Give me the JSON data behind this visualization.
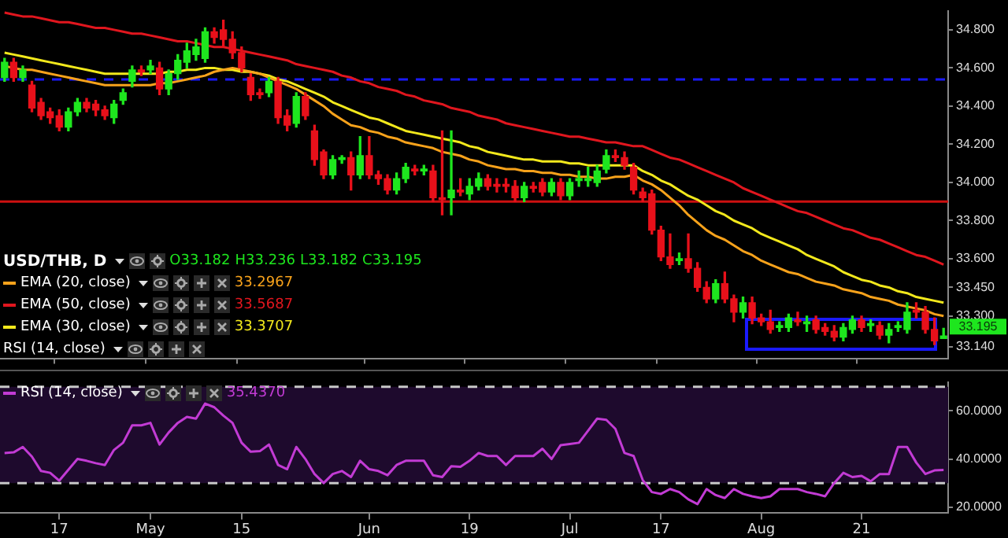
{
  "chart_data": [
    {
      "type": "candlestick",
      "title": "USD/THB, D",
      "annotations": [
        "O33.182",
        "H33.236",
        "L33.182",
        "C33.195",
        "33.2967",
        "33.5687",
        "33.3707",
        "RSI (14, close)",
        "33.195"
      ],
      "ohlc": [
        [
          34.55,
          34.65,
          34.53,
          34.63
        ],
        [
          34.63,
          34.65,
          34.53,
          34.55
        ],
        [
          34.55,
          34.61,
          34.53,
          34.59
        ],
        [
          34.51,
          34.53,
          34.37,
          34.39
        ],
        [
          34.42,
          34.44,
          34.33,
          34.35
        ],
        [
          34.37,
          34.39,
          34.31,
          34.34
        ],
        [
          34.35,
          34.38,
          34.27,
          34.29
        ],
        [
          34.29,
          34.39,
          34.27,
          34.37
        ],
        [
          34.37,
          34.44,
          34.35,
          34.42
        ],
        [
          34.42,
          34.44,
          34.37,
          34.39
        ],
        [
          34.41,
          34.43,
          34.35,
          34.38
        ],
        [
          34.38,
          34.4,
          34.33,
          34.35
        ],
        [
          34.34,
          34.43,
          34.31,
          34.41
        ],
        [
          34.43,
          34.49,
          34.41,
          34.47
        ],
        [
          34.53,
          34.61,
          34.5,
          34.59
        ],
        [
          34.59,
          34.61,
          34.56,
          34.58
        ],
        [
          34.59,
          34.64,
          34.57,
          34.61
        ],
        [
          34.6,
          34.63,
          34.46,
          34.49
        ],
        [
          34.49,
          34.59,
          34.46,
          34.57
        ],
        [
          34.57,
          34.67,
          34.54,
          34.64
        ],
        [
          34.63,
          34.73,
          34.6,
          34.69
        ],
        [
          34.67,
          34.75,
          34.64,
          34.71
        ],
        [
          34.65,
          34.81,
          34.63,
          34.79
        ],
        [
          34.79,
          34.81,
          34.73,
          34.76
        ],
        [
          34.8,
          34.85,
          34.71,
          34.75
        ],
        [
          34.75,
          34.79,
          34.65,
          34.68
        ],
        [
          34.68,
          34.71,
          34.58,
          34.6
        ],
        [
          34.55,
          34.57,
          34.43,
          34.46
        ],
        [
          34.47,
          34.49,
          34.44,
          34.46
        ],
        [
          34.47,
          34.55,
          34.45,
          34.53
        ],
        [
          34.53,
          34.55,
          34.31,
          34.34
        ],
        [
          34.35,
          34.38,
          34.27,
          34.3
        ],
        [
          34.31,
          34.47,
          34.29,
          34.45
        ],
        [
          34.45,
          34.47,
          34.33,
          34.35
        ],
        [
          34.27,
          34.3,
          34.09,
          34.12
        ],
        [
          34.16,
          34.17,
          34.02,
          34.04
        ],
        [
          34.04,
          34.14,
          34.02,
          34.12
        ],
        [
          34.12,
          34.14,
          34.1,
          34.13
        ],
        [
          34.13,
          34.16,
          33.96,
          34.04
        ],
        [
          34.04,
          34.24,
          34.02,
          34.14
        ],
        [
          34.14,
          34.24,
          34.02,
          34.04
        ],
        [
          34.04,
          34.06,
          33.99,
          34.02
        ],
        [
          34.02,
          34.04,
          33.94,
          33.96
        ],
        [
          33.96,
          34.05,
          33.94,
          34.02
        ],
        [
          34.02,
          34.1,
          34.0,
          34.08
        ],
        [
          34.07,
          34.09,
          34.04,
          34.06
        ],
        [
          34.06,
          34.09,
          34.04,
          34.07
        ],
        [
          34.06,
          34.09,
          33.9,
          33.92
        ],
        [
          33.92,
          34.27,
          33.83,
          33.91
        ],
        [
          33.92,
          34.27,
          33.83,
          33.96
        ],
        [
          33.96,
          34.02,
          33.93,
          33.95
        ],
        [
          33.94,
          34.02,
          33.91,
          33.98
        ],
        [
          33.98,
          34.05,
          33.96,
          34.02
        ],
        [
          34.02,
          34.04,
          33.96,
          33.98
        ],
        [
          33.99,
          34.02,
          33.95,
          33.98
        ],
        [
          33.99,
          34.02,
          33.95,
          33.98
        ],
        [
          33.98,
          34.01,
          33.9,
          33.92
        ],
        [
          33.92,
          34.0,
          33.9,
          33.98
        ],
        [
          33.98,
          34.0,
          33.95,
          33.97
        ],
        [
          34.0,
          34.02,
          33.93,
          33.95
        ],
        [
          33.95,
          34.02,
          33.93,
          34.0
        ],
        [
          34.0,
          34.02,
          33.91,
          33.93
        ],
        [
          33.93,
          34.02,
          33.91,
          34.0
        ],
        [
          34.01,
          34.06,
          33.98,
          34.02
        ],
        [
          34.01,
          34.08,
          33.98,
          34.02
        ],
        [
          34.0,
          34.09,
          33.98,
          34.06
        ],
        [
          34.07,
          34.17,
          34.05,
          34.14
        ],
        [
          34.14,
          34.17,
          34.11,
          34.13
        ],
        [
          34.13,
          34.16,
          34.07,
          34.09
        ],
        [
          34.08,
          34.1,
          33.94,
          33.96
        ],
        [
          33.95,
          33.97,
          33.9,
          33.92
        ],
        [
          33.94,
          33.96,
          33.73,
          33.75
        ],
        [
          33.75,
          33.77,
          33.59,
          33.61
        ],
        [
          33.61,
          33.73,
          33.55,
          33.57
        ],
        [
          33.59,
          33.63,
          33.57,
          33.6
        ],
        [
          33.6,
          33.73,
          33.53,
          33.55
        ],
        [
          33.55,
          33.58,
          33.43,
          33.45
        ],
        [
          33.45,
          33.48,
          33.37,
          33.39
        ],
        [
          33.39,
          33.49,
          33.37,
          33.47
        ],
        [
          33.47,
          33.53,
          33.37,
          33.39
        ],
        [
          33.39,
          33.41,
          33.27,
          33.32
        ],
        [
          33.32,
          33.4,
          33.29,
          33.37
        ],
        [
          33.37,
          33.4,
          33.26,
          33.29
        ],
        [
          33.29,
          33.31,
          33.25,
          33.27
        ],
        [
          33.27,
          33.33,
          33.21,
          33.23
        ],
        [
          33.24,
          33.27,
          33.22,
          33.25
        ],
        [
          33.24,
          33.31,
          33.22,
          33.29
        ],
        [
          33.28,
          33.32,
          33.25,
          33.27
        ],
        [
          33.26,
          33.3,
          33.22,
          33.27
        ],
        [
          33.28,
          33.3,
          33.21,
          33.23
        ],
        [
          33.24,
          33.26,
          33.2,
          33.22
        ],
        [
          33.22,
          33.25,
          33.17,
          33.19
        ],
        [
          33.19,
          33.26,
          33.17,
          33.24
        ],
        [
          33.23,
          33.3,
          33.21,
          33.28
        ],
        [
          33.28,
          33.3,
          33.22,
          33.24
        ],
        [
          33.25,
          33.28,
          33.22,
          33.26
        ],
        [
          33.25,
          33.27,
          33.18,
          33.2
        ],
        [
          33.2,
          33.26,
          33.16,
          33.23
        ],
        [
          33.24,
          33.27,
          33.22,
          33.25
        ],
        [
          33.23,
          33.37,
          33.21,
          33.32
        ],
        [
          33.33,
          33.37,
          33.29,
          33.32
        ],
        [
          33.32,
          33.35,
          33.21,
          33.23
        ],
        [
          33.23,
          33.29,
          33.15,
          33.17
        ],
        [
          33.182,
          33.236,
          33.182,
          33.195
        ]
      ],
      "colors": [
        "#1ee61e",
        "#e8101a",
        "#1ee61e",
        "#e8101a",
        "#e8101a",
        "#e8101a",
        "#e8101a",
        "#1ee61e",
        "#1ee61e",
        "#e8101a",
        "#e8101a",
        "#e8101a",
        "#1ee61e",
        "#1ee61e",
        "#1ee61e",
        "#e8101a",
        "#1ee61e",
        "#e8101a",
        "#1ee61e",
        "#1ee61e",
        "#1ee61e",
        "#1ee61e",
        "#1ee61e",
        "#e8101a",
        "#e8101a",
        "#e8101a",
        "#e8101a",
        "#e8101a",
        "#e8101a",
        "#1ee61e",
        "#e8101a",
        "#e8101a",
        "#1ee61e",
        "#e8101a",
        "#e8101a",
        "#e8101a",
        "#1ee61e",
        "#1ee61e",
        "#e8101a",
        "#1ee61e",
        "#e8101a",
        "#e8101a",
        "#e8101a",
        "#1ee61e",
        "#1ee61e",
        "#e8101a",
        "#1ee61e",
        "#e8101a",
        "#e8101a",
        "#1ee61e",
        "#e8101a",
        "#1ee61e",
        "#1ee61e",
        "#e8101a",
        "#e8101a",
        "#e8101a",
        "#e8101a",
        "#1ee61e",
        "#e8101a",
        "#e8101a",
        "#1ee61e",
        "#e8101a",
        "#1ee61e",
        "#1ee61e",
        "#1ee61e",
        "#1ee61e",
        "#1ee61e",
        "#e8101a",
        "#e8101a",
        "#e8101a",
        "#e8101a",
        "#e8101a",
        "#e8101a",
        "#e8101a",
        "#1ee61e",
        "#e8101a",
        "#e8101a",
        "#e8101a",
        "#1ee61e",
        "#e8101a",
        "#e8101a",
        "#1ee61e",
        "#e8101a",
        "#e8101a",
        "#e8101a",
        "#1ee61e",
        "#1ee61e",
        "#e8101a",
        "#1ee61e",
        "#e8101a",
        "#e8101a",
        "#e8101a",
        "#1ee61e",
        "#1ee61e",
        "#e8101a",
        "#1ee61e",
        "#e8101a",
        "#1ee61e",
        "#1ee61e",
        "#1ee61e",
        "#e8101a",
        "#e8101a",
        "#e8101a",
        "#1ee61e"
      ],
      "series": [
        {
          "type": "line",
          "name": "EMA (20, close)",
          "color": "#f7a21b",
          "values": [
            34.61,
            34.6,
            34.59,
            34.59,
            34.58,
            34.57,
            34.56,
            34.55,
            34.54,
            34.53,
            34.52,
            34.51,
            34.51,
            34.51,
            34.51,
            34.51,
            34.51,
            34.52,
            34.52,
            34.53,
            34.54,
            34.55,
            34.56,
            34.58,
            34.59,
            34.6,
            34.59,
            34.58,
            34.57,
            34.55,
            34.53,
            34.51,
            34.49,
            34.46,
            34.43,
            34.4,
            34.36,
            34.33,
            34.3,
            34.29,
            34.27,
            34.26,
            34.24,
            34.23,
            34.21,
            34.2,
            34.19,
            34.18,
            34.16,
            34.15,
            34.14,
            34.12,
            34.11,
            34.09,
            34.08,
            34.07,
            34.07,
            34.06,
            34.06,
            34.05,
            34.05,
            34.04,
            34.04,
            34.03,
            34.03,
            34.02,
            34.02,
            34.03,
            34.03,
            34.04,
            34.01,
            33.99,
            33.96,
            33.92,
            33.88,
            33.83,
            33.79,
            33.75,
            33.72,
            33.7,
            33.67,
            33.64,
            33.62,
            33.59,
            33.57,
            33.55,
            33.53,
            33.52,
            33.5,
            33.48,
            33.47,
            33.46,
            33.44,
            33.43,
            33.42,
            33.4,
            33.39,
            33.38,
            33.36,
            33.35,
            33.34,
            33.33,
            33.31,
            33.3
          ]
        },
        {
          "type": "line",
          "name": "EMA (50, close)",
          "color": "#e0161e",
          "values": [
            34.89,
            34.88,
            34.87,
            34.87,
            34.86,
            34.85,
            34.84,
            34.84,
            34.83,
            34.82,
            34.81,
            34.81,
            34.8,
            34.79,
            34.78,
            34.78,
            34.77,
            34.76,
            34.75,
            34.74,
            34.74,
            34.73,
            34.72,
            34.71,
            34.71,
            34.7,
            34.69,
            34.68,
            34.67,
            34.66,
            34.65,
            34.64,
            34.62,
            34.61,
            34.6,
            34.59,
            34.58,
            34.56,
            34.55,
            34.53,
            34.52,
            34.5,
            34.49,
            34.48,
            34.46,
            34.45,
            34.43,
            34.42,
            34.41,
            34.39,
            34.38,
            34.37,
            34.35,
            34.34,
            34.33,
            34.31,
            34.3,
            34.29,
            34.28,
            34.27,
            34.26,
            34.25,
            34.24,
            34.24,
            34.23,
            34.22,
            34.21,
            34.21,
            34.2,
            34.19,
            34.19,
            34.17,
            34.15,
            34.13,
            34.12,
            34.1,
            34.08,
            34.06,
            34.04,
            34.02,
            34.0,
            33.97,
            33.95,
            33.93,
            33.91,
            33.89,
            33.87,
            33.85,
            33.84,
            33.82,
            33.8,
            33.78,
            33.76,
            33.75,
            33.73,
            33.71,
            33.7,
            33.68,
            33.66,
            33.64,
            33.62,
            33.61,
            33.59,
            33.57
          ]
        },
        {
          "type": "line",
          "name": "EMA (30, close)",
          "color": "#f2e81c",
          "values": [
            34.68,
            34.67,
            34.66,
            34.65,
            34.64,
            34.63,
            34.62,
            34.61,
            34.6,
            34.59,
            34.58,
            34.57,
            34.57,
            34.57,
            34.57,
            34.57,
            34.57,
            34.57,
            34.58,
            34.58,
            34.59,
            34.59,
            34.6,
            34.6,
            34.59,
            34.59,
            34.58,
            34.58,
            34.57,
            34.56,
            34.54,
            34.53,
            34.51,
            34.49,
            34.47,
            34.45,
            34.42,
            34.4,
            34.38,
            34.36,
            34.34,
            34.33,
            34.31,
            34.29,
            34.27,
            34.26,
            34.25,
            34.24,
            34.23,
            34.22,
            34.21,
            34.19,
            34.18,
            34.16,
            34.15,
            34.14,
            34.13,
            34.12,
            34.12,
            34.11,
            34.11,
            34.11,
            34.1,
            34.1,
            34.09,
            34.09,
            34.09,
            34.09,
            34.09,
            34.09,
            34.06,
            34.04,
            34.01,
            33.99,
            33.96,
            33.93,
            33.91,
            33.88,
            33.85,
            33.83,
            33.8,
            33.78,
            33.76,
            33.73,
            33.71,
            33.69,
            33.67,
            33.65,
            33.62,
            33.6,
            33.58,
            33.56,
            33.53,
            33.51,
            33.49,
            33.48,
            33.46,
            33.45,
            33.43,
            33.42,
            33.4,
            33.39,
            33.38,
            33.37
          ]
        }
      ],
      "ylim": [
        33.075,
        34.9
      ],
      "yticks": [
        {
          "value": 34.8,
          "label": "34.800"
        },
        {
          "value": 34.6,
          "label": "34.600"
        },
        {
          "value": 34.4,
          "label": "34.400"
        },
        {
          "value": 34.2,
          "label": "34.200"
        },
        {
          "value": 34,
          "label": "34.000"
        },
        {
          "value": 33.8,
          "label": "33.800"
        },
        {
          "value": 33.6,
          "label": "33.600"
        },
        {
          "value": 33.45,
          "label": "33.450"
        },
        {
          "value": 33.3,
          "label": "33.300"
        },
        {
          "value": 33.14,
          "label": "33.140"
        }
      ],
      "ref_lines": [
        {
          "axis": "y",
          "value": 34.54,
          "color": "#1a1aff",
          "line_style": "dashed"
        },
        {
          "axis": "y",
          "value": 33.9,
          "color": "#cc1010",
          "line_style": "solid"
        }
      ],
      "legend": "bottom left",
      "tick_labels": "y",
      "marker": "none"
    },
    {
      "type": "line",
      "annotations": [
        "35.4370"
      ],
      "categories": [
        null,
        null,
        null,
        null,
        null,
        null,
        "17",
        null,
        null,
        null,
        null,
        null,
        null,
        null,
        null,
        null,
        "May",
        null,
        null,
        null,
        null,
        null,
        null,
        null,
        null,
        null,
        "15",
        null,
        null,
        null,
        null,
        null,
        null,
        null,
        null,
        null,
        null,
        null,
        null,
        null,
        "Jun",
        null,
        null,
        null,
        null,
        null,
        null,
        null,
        null,
        null,
        null,
        "19",
        null,
        null,
        null,
        null,
        null,
        null,
        null,
        null,
        null,
        null,
        "Jul",
        null,
        null,
        null,
        null,
        null,
        null,
        null,
        null,
        null,
        "17",
        null,
        null,
        null,
        null,
        null,
        null,
        null,
        null,
        null,
        null,
        "Aug",
        null,
        null,
        null,
        null,
        null,
        null,
        null,
        null,
        null,
        null,
        "21",
        null,
        null,
        null,
        null,
        null,
        null,
        null,
        null,
        null
      ],
      "series": [
        {
          "name": "RSI (14, close)",
          "color": "#c23bd4",
          "values": [
            42.5,
            42.75,
            45,
            41,
            35,
            34.25,
            31,
            35.5,
            40,
            39.25,
            38.25,
            37.5,
            43.75,
            46.75,
            54,
            54,
            55,
            46,
            51,
            55,
            57.5,
            56.75,
            63,
            61.5,
            58,
            55,
            46.75,
            43,
            43.25,
            46,
            37.5,
            35.75,
            45,
            40,
            33.75,
            30,
            33.75,
            35,
            32.5,
            39.25,
            35.75,
            35,
            33.25,
            37.5,
            39.25,
            39.25,
            39.25,
            33.25,
            32.5,
            37,
            36.75,
            39.25,
            42.5,
            41.25,
            41.25,
            37.5,
            41.25,
            41.25,
            41.25,
            44.25,
            40,
            45.75,
            46.25,
            46.75,
            51.75,
            56.75,
            56.25,
            52.5,
            42.5,
            41.25,
            31.25,
            26.25,
            25.5,
            27.5,
            26.25,
            23.25,
            21.25,
            27.5,
            25,
            23.75,
            27.5,
            25.5,
            24.5,
            23.75,
            24.5,
            27.5,
            27.5,
            27.5,
            26.25,
            25.5,
            24.5,
            30,
            34.25,
            32.5,
            33,
            30.75,
            33.75,
            33.75,
            45,
            45,
            38.5,
            33.75,
            35.25,
            35.4
          ]
        }
      ],
      "ylim": [
        17.5,
        72
      ],
      "yticks": [
        {
          "value": 20,
          "label": "20.0000"
        },
        {
          "value": 40,
          "label": "40.0000"
        },
        {
          "value": 60,
          "label": "60.0000"
        }
      ],
      "ref_lines": [
        {
          "axis": "y",
          "value": 70,
          "color": "#c8c8c8",
          "line_style": "dashed"
        },
        {
          "axis": "y",
          "value": 30,
          "color": "#c8c8c8",
          "line_style": "dashed"
        }
      ],
      "bands": [
        {
          "axis": "y",
          "from": 30,
          "to": 70,
          "color": "#1e0a2d"
        }
      ],
      "legend": "top left",
      "marker": "none"
    }
  ]
}
